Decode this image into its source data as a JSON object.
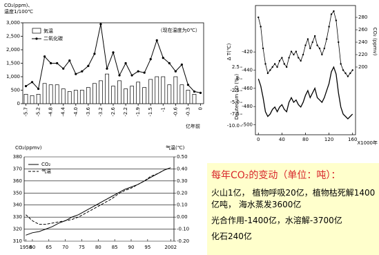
{
  "chart_data": [
    {
      "type": "bar",
      "title_lines": [
        "CO₂(ppm)、",
        "温度1/100℃"
      ],
      "annotation": "（现在温度为0℃）",
      "x_label": "亿年前",
      "categories": [
        "-5.7",
        null,
        "-5.2",
        null,
        "-4.8",
        null,
        "-4.4",
        null,
        "-4.0",
        null,
        "-3.6",
        null,
        "-3.2",
        null,
        "-2.6",
        null,
        "-2.2",
        null,
        "-1.9",
        null,
        "-1.5",
        null,
        "-1",
        null,
        "-0.6",
        null,
        "-0.3",
        null,
        "0"
      ],
      "series": [
        {
          "name": "気温",
          "type": "bar",
          "color": "#ffffff",
          "values": [
            350,
            300,
            350,
            750,
            700,
            700,
            550,
            450,
            500,
            500,
            600,
            750,
            850,
            1100,
            650,
            850,
            550,
            650,
            800,
            600,
            900,
            1000,
            1000,
            700,
            1000,
            700,
            500,
            350,
            0
          ]
        },
        {
          "name": "二氧化碳",
          "type": "line",
          "color": "#000000",
          "values": [
            650,
            800,
            550,
            1750,
            1500,
            1500,
            1300,
            1600,
            1100,
            1200,
            1400,
            1850,
            2950,
            1300,
            1900,
            1050,
            1500,
            1050,
            1200,
            1150,
            1650,
            2350,
            1700,
            1500,
            1200,
            1450,
            700,
            450,
            400
          ]
        }
      ],
      "ylim": [
        0,
        3000
      ],
      "yticks": [
        0,
        500,
        {
          "value": 1000,
          "label": "1,000"
        },
        {
          "value": 1500,
          "label": "1,500"
        },
        {
          "value": 2000,
          "label": "2,000"
        },
        {
          "value": 2500,
          "label": "2,500"
        },
        {
          "value": 3000,
          "label": "3,000"
        }
      ]
    },
    {
      "type": "line",
      "y_label": "Δ T(℃)",
      "y3_label": "Deuterium δD (‰)",
      "y2_label": "CO₂ (ppmv)",
      "x_label": "X1000年",
      "x": [
        0,
        4,
        8,
        12,
        16,
        20,
        24,
        28,
        32,
        36,
        40,
        44,
        48,
        52,
        56,
        60,
        64,
        68,
        72,
        76,
        80,
        84,
        88,
        92,
        96,
        100,
        104,
        108,
        112,
        116,
        120,
        124,
        128,
        132,
        136,
        140,
        144,
        148,
        152,
        156,
        160
      ],
      "series": [
        {
          "name": "ΔT",
          "axis": "y",
          "color": "#000000",
          "values": [
            0,
            -1.5,
            -4,
            -7,
            -8,
            -7.5,
            -6.5,
            -6,
            -7,
            -6,
            -5.5,
            -6.5,
            -7,
            -5,
            -4,
            -5,
            -4.5,
            -5.5,
            -6,
            -5,
            -3.5,
            -2.5,
            -4,
            -3,
            -2,
            -4,
            -4.5,
            -5,
            -4,
            -2.5,
            -1,
            1.5,
            2.5,
            1,
            -3,
            -6,
            -7.5,
            -8,
            -8.5,
            -8,
            -7.5
          ]
        },
        {
          "name": "CO₂",
          "axis": "y2",
          "color": "#000000",
          "values": [
            280,
            265,
            230,
            205,
            190,
            195,
            200,
            205,
            200,
            210,
            215,
            205,
            200,
            215,
            225,
            220,
            225,
            215,
            210,
            220,
            235,
            245,
            230,
            240,
            250,
            235,
            230,
            220,
            230,
            245,
            265,
            285,
            290,
            275,
            240,
            205,
            195,
            190,
            185,
            190,
            195
          ]
        }
      ],
      "xlim": [
        -5,
        165
      ],
      "xticks": [
        0,
        40,
        80,
        120,
        160
      ],
      "ylim": [
        -11.9,
        15.6
      ],
      "yticks": [
        2.5,
        0,
        -2.5,
        {
          "value": -5,
          "label": "-5.0"
        },
        -7.5,
        {
          "value": -10,
          "label": "-10.0"
        }
      ],
      "y3lim": [
        -511,
        -369
      ],
      "y3ticks": [
        -420,
        -440,
        -460,
        -480,
        -500
      ],
      "y2lim": [
        91,
        299
      ],
      "y2ticks": [
        200,
        220,
        240,
        260,
        280
      ]
    },
    {
      "type": "line",
      "y_label": "CO₂(ppmv)",
      "y2_label": "气温(℃)",
      "x": [
        1958,
        1960,
        1962,
        1964,
        1966,
        1968,
        1970,
        1972,
        1974,
        1976,
        1978,
        1980,
        1982,
        1984,
        1986,
        1988,
        1990,
        1992,
        1994,
        1996,
        1998,
        2000,
        2002
      ],
      "series": [
        {
          "name": "CO₂",
          "axis": "y",
          "dash": false,
          "color": "#000000",
          "values": [
            315,
            317,
            318,
            320,
            322,
            325,
            327,
            330,
            332,
            335,
            338,
            341,
            344,
            347,
            350,
            353,
            355,
            357,
            360,
            363,
            366,
            369,
            371
          ]
        },
        {
          "name": "气温",
          "axis": "y2",
          "dash": true,
          "color": "#000000",
          "values": [
            0.02,
            -0.03,
            -0.06,
            -0.06,
            -0.05,
            -0.04,
            -0.03,
            -0.02,
            0.0,
            0.03,
            0.06,
            0.09,
            0.12,
            0.15,
            0.19,
            0.22,
            0.24,
            0.27,
            0.3,
            0.34,
            0.36,
            0.39,
            0.41
          ]
        }
      ],
      "xlim": [
        1957.5,
        2003
      ],
      "xticks": [
        1958,
        {
          "value": 1960,
          "label": "60"
        },
        {
          "value": 1965,
          "label": "65"
        },
        {
          "value": 1970,
          "label": "70"
        },
        {
          "value": 1975,
          "label": "75"
        },
        {
          "value": 1980,
          "label": "80"
        },
        {
          "value": 1985,
          "label": "85"
        },
        {
          "value": 1990,
          "label": "90"
        },
        {
          "value": 1995,
          "label": "95"
        },
        2002
      ],
      "ylim": [
        310,
        380
      ],
      "yticks": [
        310,
        320,
        330,
        340,
        350,
        360,
        370,
        380
      ],
      "y2lim": [
        -0.2,
        0.5
      ],
      "y2ticks": [
        {
          "value": 0.5,
          "label": "0.50"
        },
        {
          "value": 0.4,
          "label": "0.40"
        },
        {
          "value": 0.3,
          "label": "0.30"
        },
        {
          "value": 0.2,
          "label": "0.20"
        },
        {
          "value": 0.1,
          "label": "0.10"
        },
        {
          "value": 0,
          "label": "0.00"
        },
        {
          "value": -0.1,
          "label": "-0.10"
        },
        {
          "value": -0.2,
          "label": "-0.20"
        }
      ],
      "grid": true
    }
  ],
  "text_box": {
    "title": "每年CO₂的变动（单位：吨）：",
    "paragraphs": [
      "火山1亿， 植物呼吸20亿，植物枯死解1400亿吨， 海水蒸发3600亿",
      "光合作用-1400亿，水溶解-3700亿",
      "化石240亿"
    ]
  }
}
